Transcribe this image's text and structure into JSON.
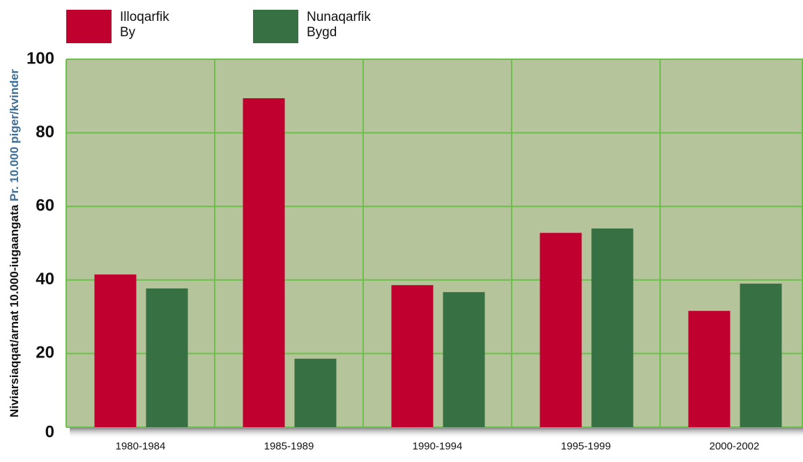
{
  "chart_data": {
    "type": "bar",
    "ylabel": "Niviarsiaqqat/arnat 10.000-iugaangata",
    "ylabel_secondary": "Pr. 10.000 piger/kvinder",
    "categories": [
      "1980-1984",
      "1985-1989",
      "1990-1994",
      "1995-1999",
      "2000-2002"
    ],
    "series": [
      {
        "name": "Illoqarfik By",
        "color": "#c0002f",
        "values": [
          41.5,
          89.4,
          38.6,
          52.8,
          31.6
        ]
      },
      {
        "name": "Nunaqarfik Bygd",
        "color": "#367043",
        "values": [
          37.7,
          18.6,
          36.7,
          54,
          39
        ]
      }
    ],
    "ylim": [
      0,
      100
    ],
    "yticks": [
      0,
      20,
      40,
      60,
      80,
      100
    ],
    "grid": true
  }
}
